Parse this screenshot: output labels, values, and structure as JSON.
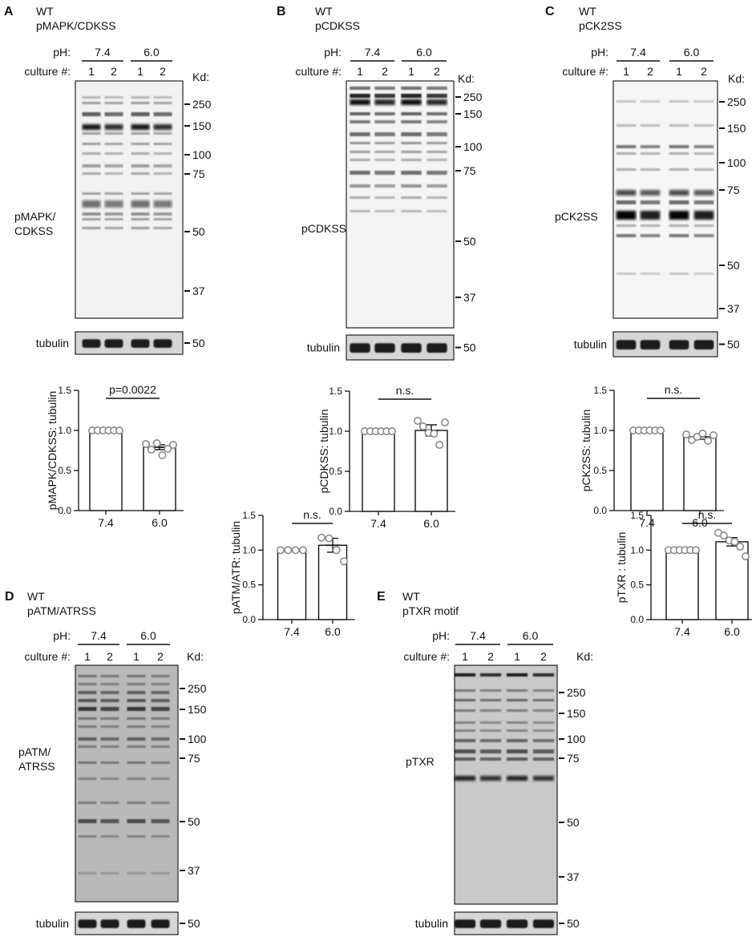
{
  "figure": {
    "panels": [
      {
        "letter": "A",
        "genotype": "WT",
        "antibody": "pMAPK/CDKSS",
        "ph_label": "pH:",
        "culture_label": "culture #:",
        "ph_groups": [
          "7.4",
          "6.0"
        ],
        "cultures": [
          "1",
          "2",
          "1",
          "2"
        ],
        "kd_label": "Kd:",
        "markers": [
          "250",
          "150",
          "100",
          "75",
          "50",
          "37"
        ],
        "blot_label": [
          "pMAPK/",
          "CDKSS"
        ],
        "tubulin_label": "tubulin",
        "tubulin_marker": "50",
        "chart_data": {
          "type": "bar",
          "categories": [
            "7.4",
            "6.0"
          ],
          "values": [
            1.0,
            0.79
          ],
          "errors": [
            0.0,
            0.03
          ],
          "points": [
            [
              1.0,
              1.0,
              1.0,
              1.0,
              1.0,
              1.0
            ],
            [
              0.83,
              0.76,
              0.84,
              0.69,
              0.77,
              0.82
            ]
          ],
          "ylabel": "pMAPK/CDKSS: tubulin",
          "ylim": [
            0,
            1.5
          ],
          "yticks": [
            "0.0",
            "0.5",
            "1.0",
            "1.5"
          ],
          "annotation": "p=0.0022"
        }
      },
      {
        "letter": "B",
        "genotype": "WT",
        "antibody": "pCDKSS",
        "ph_label": "pH:",
        "culture_label": "culture #:",
        "ph_groups": [
          "7.4",
          "6.0"
        ],
        "cultures": [
          "1",
          "2",
          "1",
          "2"
        ],
        "kd_label": "Kd:",
        "markers": [
          "250",
          "150",
          "100",
          "75",
          "50",
          "37"
        ],
        "blot_label": [
          "pCDKSS"
        ],
        "tubulin_label": "tubulin",
        "tubulin_marker": "50",
        "chart_data": {
          "type": "bar",
          "categories": [
            "7.4",
            "6.0"
          ],
          "values": [
            1.0,
            1.01
          ],
          "errors": [
            0.0,
            0.07
          ],
          "points": [
            [
              1.0,
              1.0,
              1.0,
              1.0,
              1.0,
              1.0
            ],
            [
              1.13,
              1.06,
              0.98,
              0.97,
              0.83,
              1.11
            ]
          ],
          "ylabel": "pCDKSS: tubulin",
          "ylim": [
            0,
            1.5
          ],
          "yticks": [
            "0.0",
            "0.5",
            "1.0",
            "1.5"
          ],
          "annotation": "n.s."
        }
      },
      {
        "letter": "C",
        "genotype": "WT",
        "antibody": "pCK2SS",
        "ph_label": "pH:",
        "culture_label": "culture #:",
        "ph_groups": [
          "7.4",
          "6.0"
        ],
        "cultures": [
          "1",
          "2",
          "1",
          "2"
        ],
        "kd_label": "Kd:",
        "markers": [
          "250",
          "150",
          "100",
          "75",
          "50",
          "37"
        ],
        "blot_label": [
          "pCK2SS"
        ],
        "tubulin_label": "tubulin",
        "tubulin_marker": "50",
        "chart_data": {
          "type": "bar",
          "categories": [
            "7.4",
            "6.0"
          ],
          "values": [
            1.0,
            0.92
          ],
          "errors": [
            0.0,
            0.03
          ],
          "points": [
            [
              1.0,
              1.0,
              1.0,
              1.0,
              1.0,
              1.0
            ],
            [
              0.95,
              0.88,
              0.92,
              0.96,
              0.87,
              0.94
            ]
          ],
          "ylabel": "pCK2SS: tubulin",
          "ylim": [
            0,
            1.5
          ],
          "yticks": [
            "0.0",
            "0.5",
            "1.0",
            "1.5"
          ],
          "annotation": "n.s."
        }
      },
      {
        "letter": "D",
        "genotype": "WT",
        "antibody": "pATM/ATRSS",
        "ph_label": "pH:",
        "culture_label": "culture #:",
        "ph_groups": [
          "7.4",
          "6.0"
        ],
        "cultures": [
          "1",
          "2",
          "1",
          "2"
        ],
        "kd_label": "Kd:",
        "markers": [
          "250",
          "150",
          "100",
          "75",
          "50",
          "37"
        ],
        "blot_label": [
          "pATM/",
          "ATRSS"
        ],
        "tubulin_label": "tubulin",
        "tubulin_marker": "50",
        "chart_data": {
          "type": "bar",
          "categories": [
            "7.4",
            "6.0"
          ],
          "values": [
            1.0,
            1.07
          ],
          "errors": [
            0.0,
            0.1
          ],
          "points": [
            [
              1.0,
              1.0,
              1.0,
              1.0
            ],
            [
              1.18,
              1.17,
              1.0,
              0.84
            ]
          ],
          "ylabel": "pATM/ATR: tubulin",
          "ylim": [
            0,
            1.5
          ],
          "yticks": [
            "0.0",
            "0.5",
            "1.0",
            "1.5"
          ],
          "annotation": "n.s."
        }
      },
      {
        "letter": "E",
        "genotype": "WT",
        "antibody": "pTXR motif",
        "ph_label": "pH:",
        "culture_label": "culture #:",
        "ph_groups": [
          "7.4",
          "6.0"
        ],
        "cultures": [
          "1",
          "2",
          "1",
          "2"
        ],
        "kd_label": "Kd:",
        "markers": [
          "250",
          "150",
          "100",
          "75",
          "50",
          "37"
        ],
        "blot_label": [
          "pTXR"
        ],
        "tubulin_label": "tubulin",
        "tubulin_marker": "50",
        "chart_data": {
          "type": "bar",
          "categories": [
            "7.4",
            "6.0"
          ],
          "values": [
            1.0,
            1.12
          ],
          "errors": [
            0.0,
            0.06
          ],
          "points": [
            [
              1.0,
              1.0,
              1.0,
              1.0,
              1.0,
              1.0
            ],
            [
              1.25,
              1.21,
              1.14,
              1.12,
              1.05,
              0.91
            ]
          ],
          "ylabel": "pTXR : tubulin",
          "ylim": [
            0,
            1.5
          ],
          "yticks": [
            "0.0",
            "0.5",
            "1.0",
            "1.5"
          ],
          "annotation": "n.s."
        }
      }
    ]
  }
}
